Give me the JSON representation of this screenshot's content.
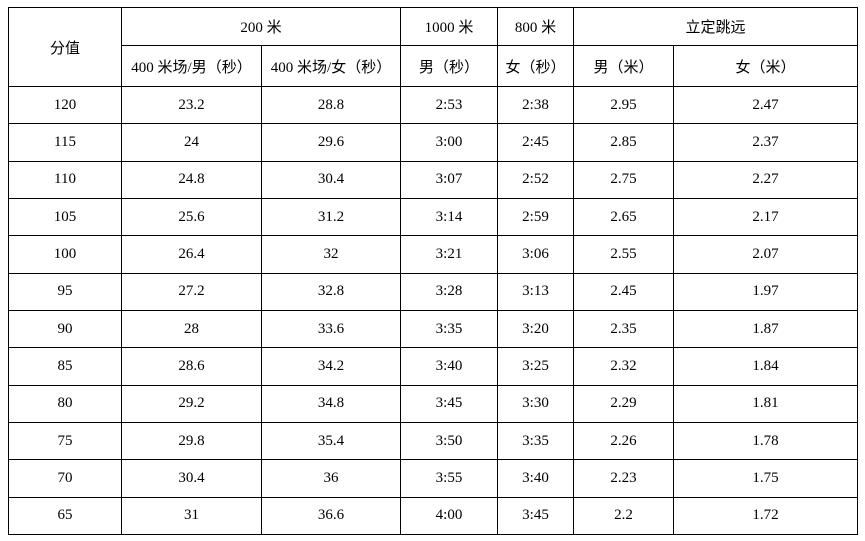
{
  "table": {
    "header": {
      "score_label": "分值",
      "groups": [
        {
          "label": "200 米"
        },
        {
          "label": "1000 米"
        },
        {
          "label": "800 米"
        },
        {
          "label": "立定跳远"
        }
      ],
      "subheaders": [
        "400 米场/男（秒）",
        "400 米场/女（秒）",
        "男（秒）",
        "女（秒）",
        "男（米）",
        "女（米）"
      ]
    },
    "rows": [
      [
        "120",
        "23.2",
        "28.8",
        "2:53",
        "2:38",
        "2.95",
        "2.47"
      ],
      [
        "115",
        "24",
        "29.6",
        "3:00",
        "2:45",
        "2.85",
        "2.37"
      ],
      [
        "110",
        "24.8",
        "30.4",
        "3:07",
        "2:52",
        "2.75",
        "2.27"
      ],
      [
        "105",
        "25.6",
        "31.2",
        "3:14",
        "2:59",
        "2.65",
        "2.17"
      ],
      [
        "100",
        "26.4",
        "32",
        "3:21",
        "3:06",
        "2.55",
        "2.07"
      ],
      [
        "95",
        "27.2",
        "32.8",
        "3:28",
        "3:13",
        "2.45",
        "1.97"
      ],
      [
        "90",
        "28",
        "33.6",
        "3:35",
        "3:20",
        "2.35",
        "1.87"
      ],
      [
        "85",
        "28.6",
        "34.2",
        "3:40",
        "3:25",
        "2.32",
        "1.84"
      ],
      [
        "80",
        "29.2",
        "34.8",
        "3:45",
        "3:30",
        "2.29",
        "1.81"
      ],
      [
        "75",
        "29.8",
        "35.4",
        "3:50",
        "3:35",
        "2.26",
        "1.78"
      ],
      [
        "70",
        "30.4",
        "36",
        "3:55",
        "3:40",
        "2.23",
        "1.75"
      ],
      [
        "65",
        "31",
        "36.6",
        "4:00",
        "3:45",
        "2.2",
        "1.72"
      ]
    ]
  },
  "colors": {
    "border": "#000000",
    "text": "#000000",
    "background": "#ffffff"
  }
}
